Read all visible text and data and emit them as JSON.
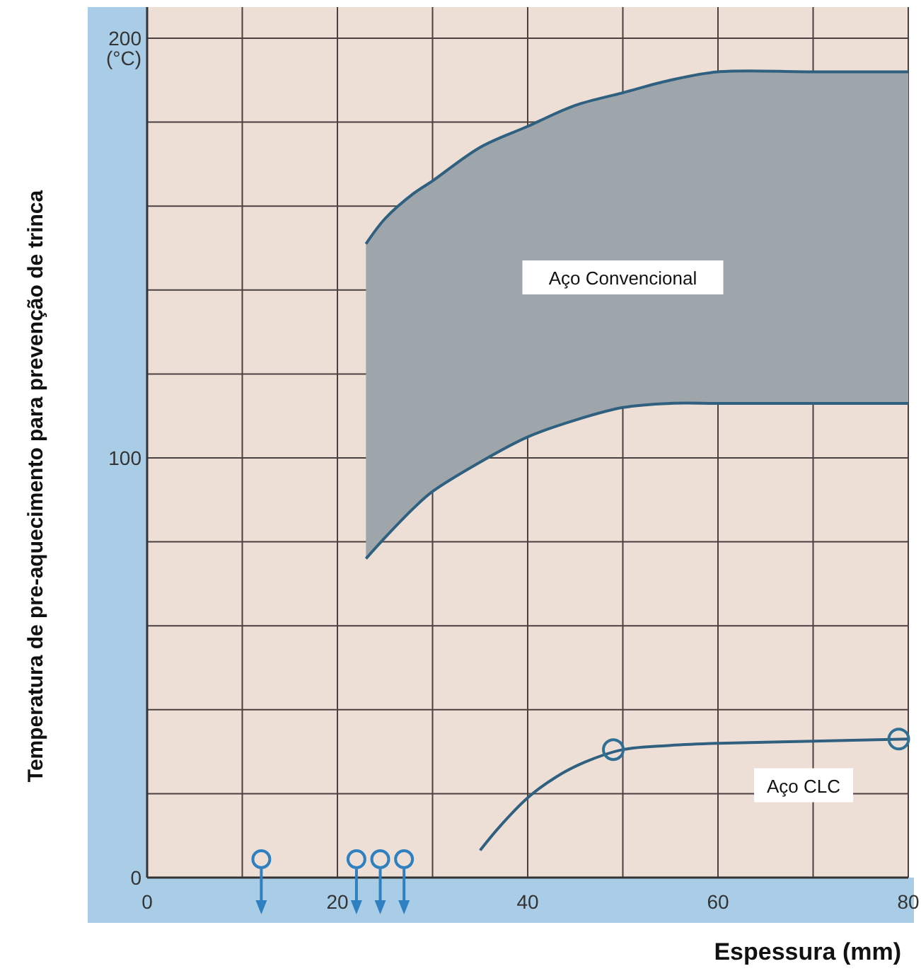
{
  "chart_data": {
    "type": "line",
    "xlabel": "Espessura (mm)",
    "ylabel": "Temperatura de pre-aquecimento para prevenção de trinca",
    "xlim": [
      0,
      80
    ],
    "ylim": [
      0,
      200
    ],
    "xticks": [
      0,
      {
        "value": 10,
        "label": null
      },
      20,
      {
        "value": 30,
        "label": null
      },
      40,
      {
        "value": 50,
        "label": null
      },
      60,
      {
        "value": 70,
        "label": null
      },
      80
    ],
    "yticks": [
      0,
      {
        "value": 20,
        "label": null
      },
      {
        "value": 40,
        "label": null
      },
      {
        "value": 60,
        "label": null
      },
      {
        "value": 80,
        "label": null
      },
      100,
      {
        "value": 120,
        "label": null
      },
      {
        "value": 140,
        "label": null
      },
      {
        "value": 160,
        "label": null
      },
      {
        "value": 180,
        "label": null
      },
      {
        "value": 200,
        "label": "200 (°C)"
      }
    ],
    "grid": true,
    "line_style": "solid",
    "series": [
      {
        "color": "#2f6080",
        "x": [
          23,
          25,
          28,
          30,
          35,
          40,
          45,
          50,
          55,
          60,
          70,
          80
        ],
        "values": [
          151,
          157,
          163,
          166,
          174,
          179,
          184,
          187,
          190,
          192,
          192,
          192
        ],
        "lower": [
          76,
          81,
          88,
          92,
          99,
          105,
          109,
          112,
          113,
          113,
          113,
          113
        ],
        "upper": [
          151,
          157,
          163,
          166,
          174,
          179,
          184,
          187,
          190,
          192,
          192,
          192
        ]
      },
      {
        "color": "#2f6080",
        "x": [
          23,
          25,
          28,
          30,
          35,
          40,
          45,
          50,
          55,
          60,
          70,
          80
        ],
        "values": [
          76,
          81,
          88,
          92,
          99,
          105,
          109,
          112,
          113,
          113,
          113,
          113
        ]
      },
      {
        "color": "#2f6080",
        "x": [
          35,
          37,
          40,
          43,
          46,
          50,
          55,
          60,
          70,
          80
        ],
        "values": [
          6.5,
          12,
          19,
          24,
          27.5,
          30.5,
          31.5,
          32,
          32.5,
          33
        ]
      },
      {
        "type": "scatter",
        "marker": "circle",
        "color": "#2f6f95",
        "x": [
          49,
          79
        ],
        "values": [
          30.5,
          33
        ]
      }
    ],
    "annotations": [
      "Aço Convencional",
      "Aço CLC"
    ]
  }
}
